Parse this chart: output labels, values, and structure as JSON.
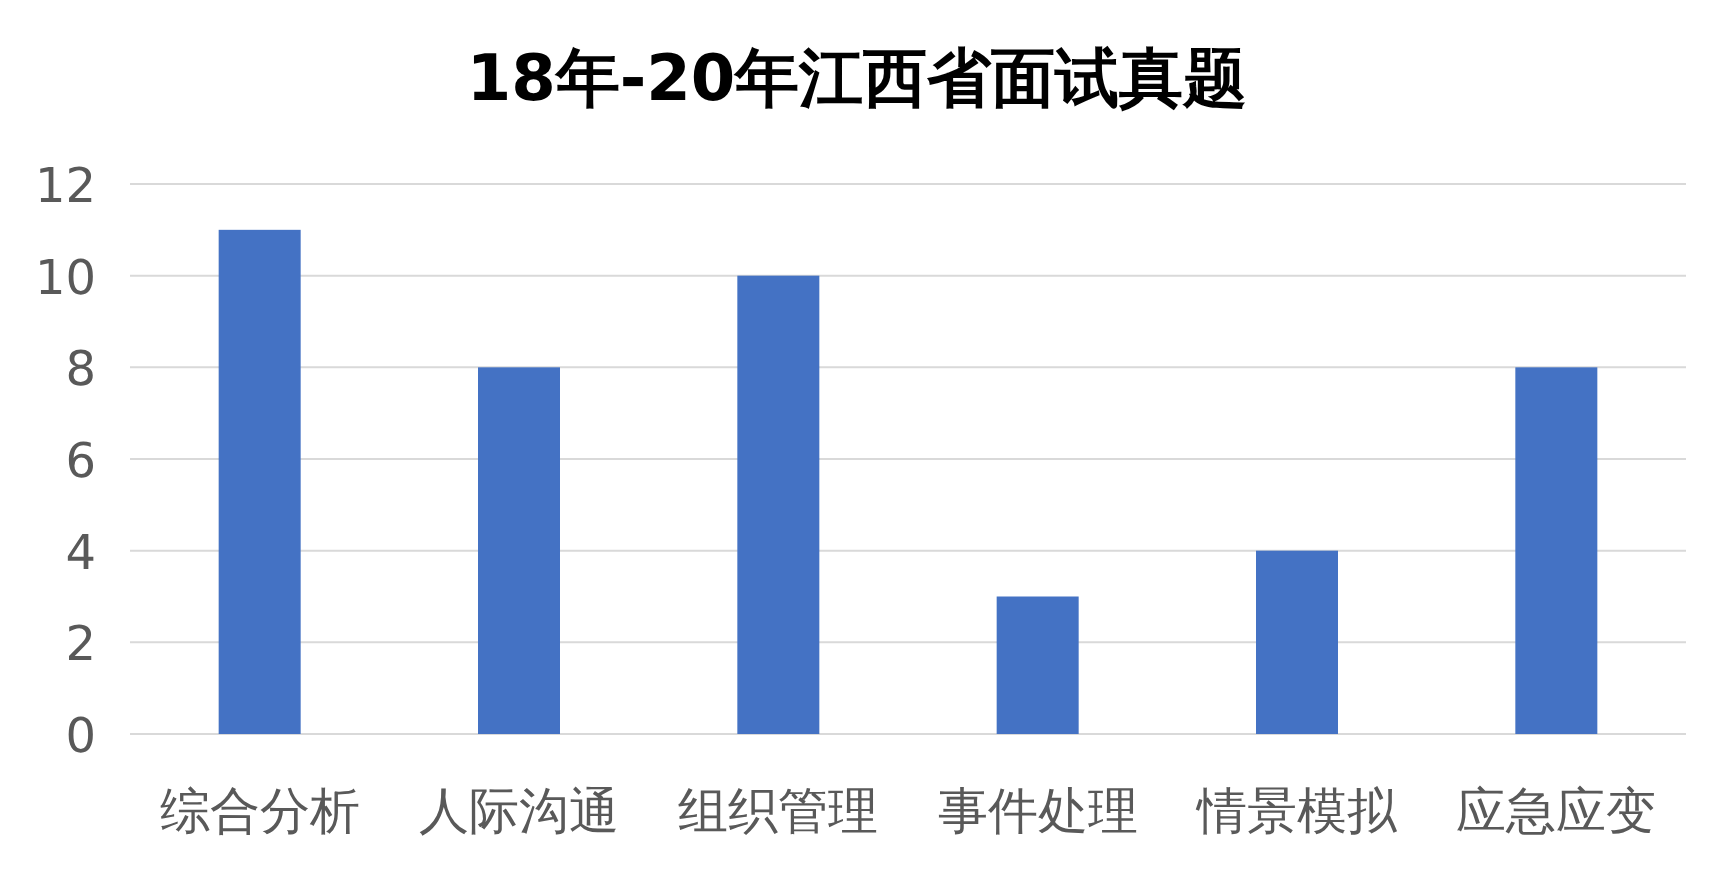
{
  "chart_data": {
    "type": "bar",
    "title": "18年-20年江西省面试真题",
    "categories": [
      "综合分析",
      "人际沟通",
      "组织管理",
      "事件处理",
      "情景模拟",
      "应急应变"
    ],
    "values": [
      11,
      8,
      10,
      3,
      4,
      8
    ],
    "color": "#4472c4",
    "ylim": [
      0,
      12
    ],
    "yticks": [
      0,
      2,
      4,
      6,
      8,
      10,
      12
    ],
    "grid": "y"
  }
}
